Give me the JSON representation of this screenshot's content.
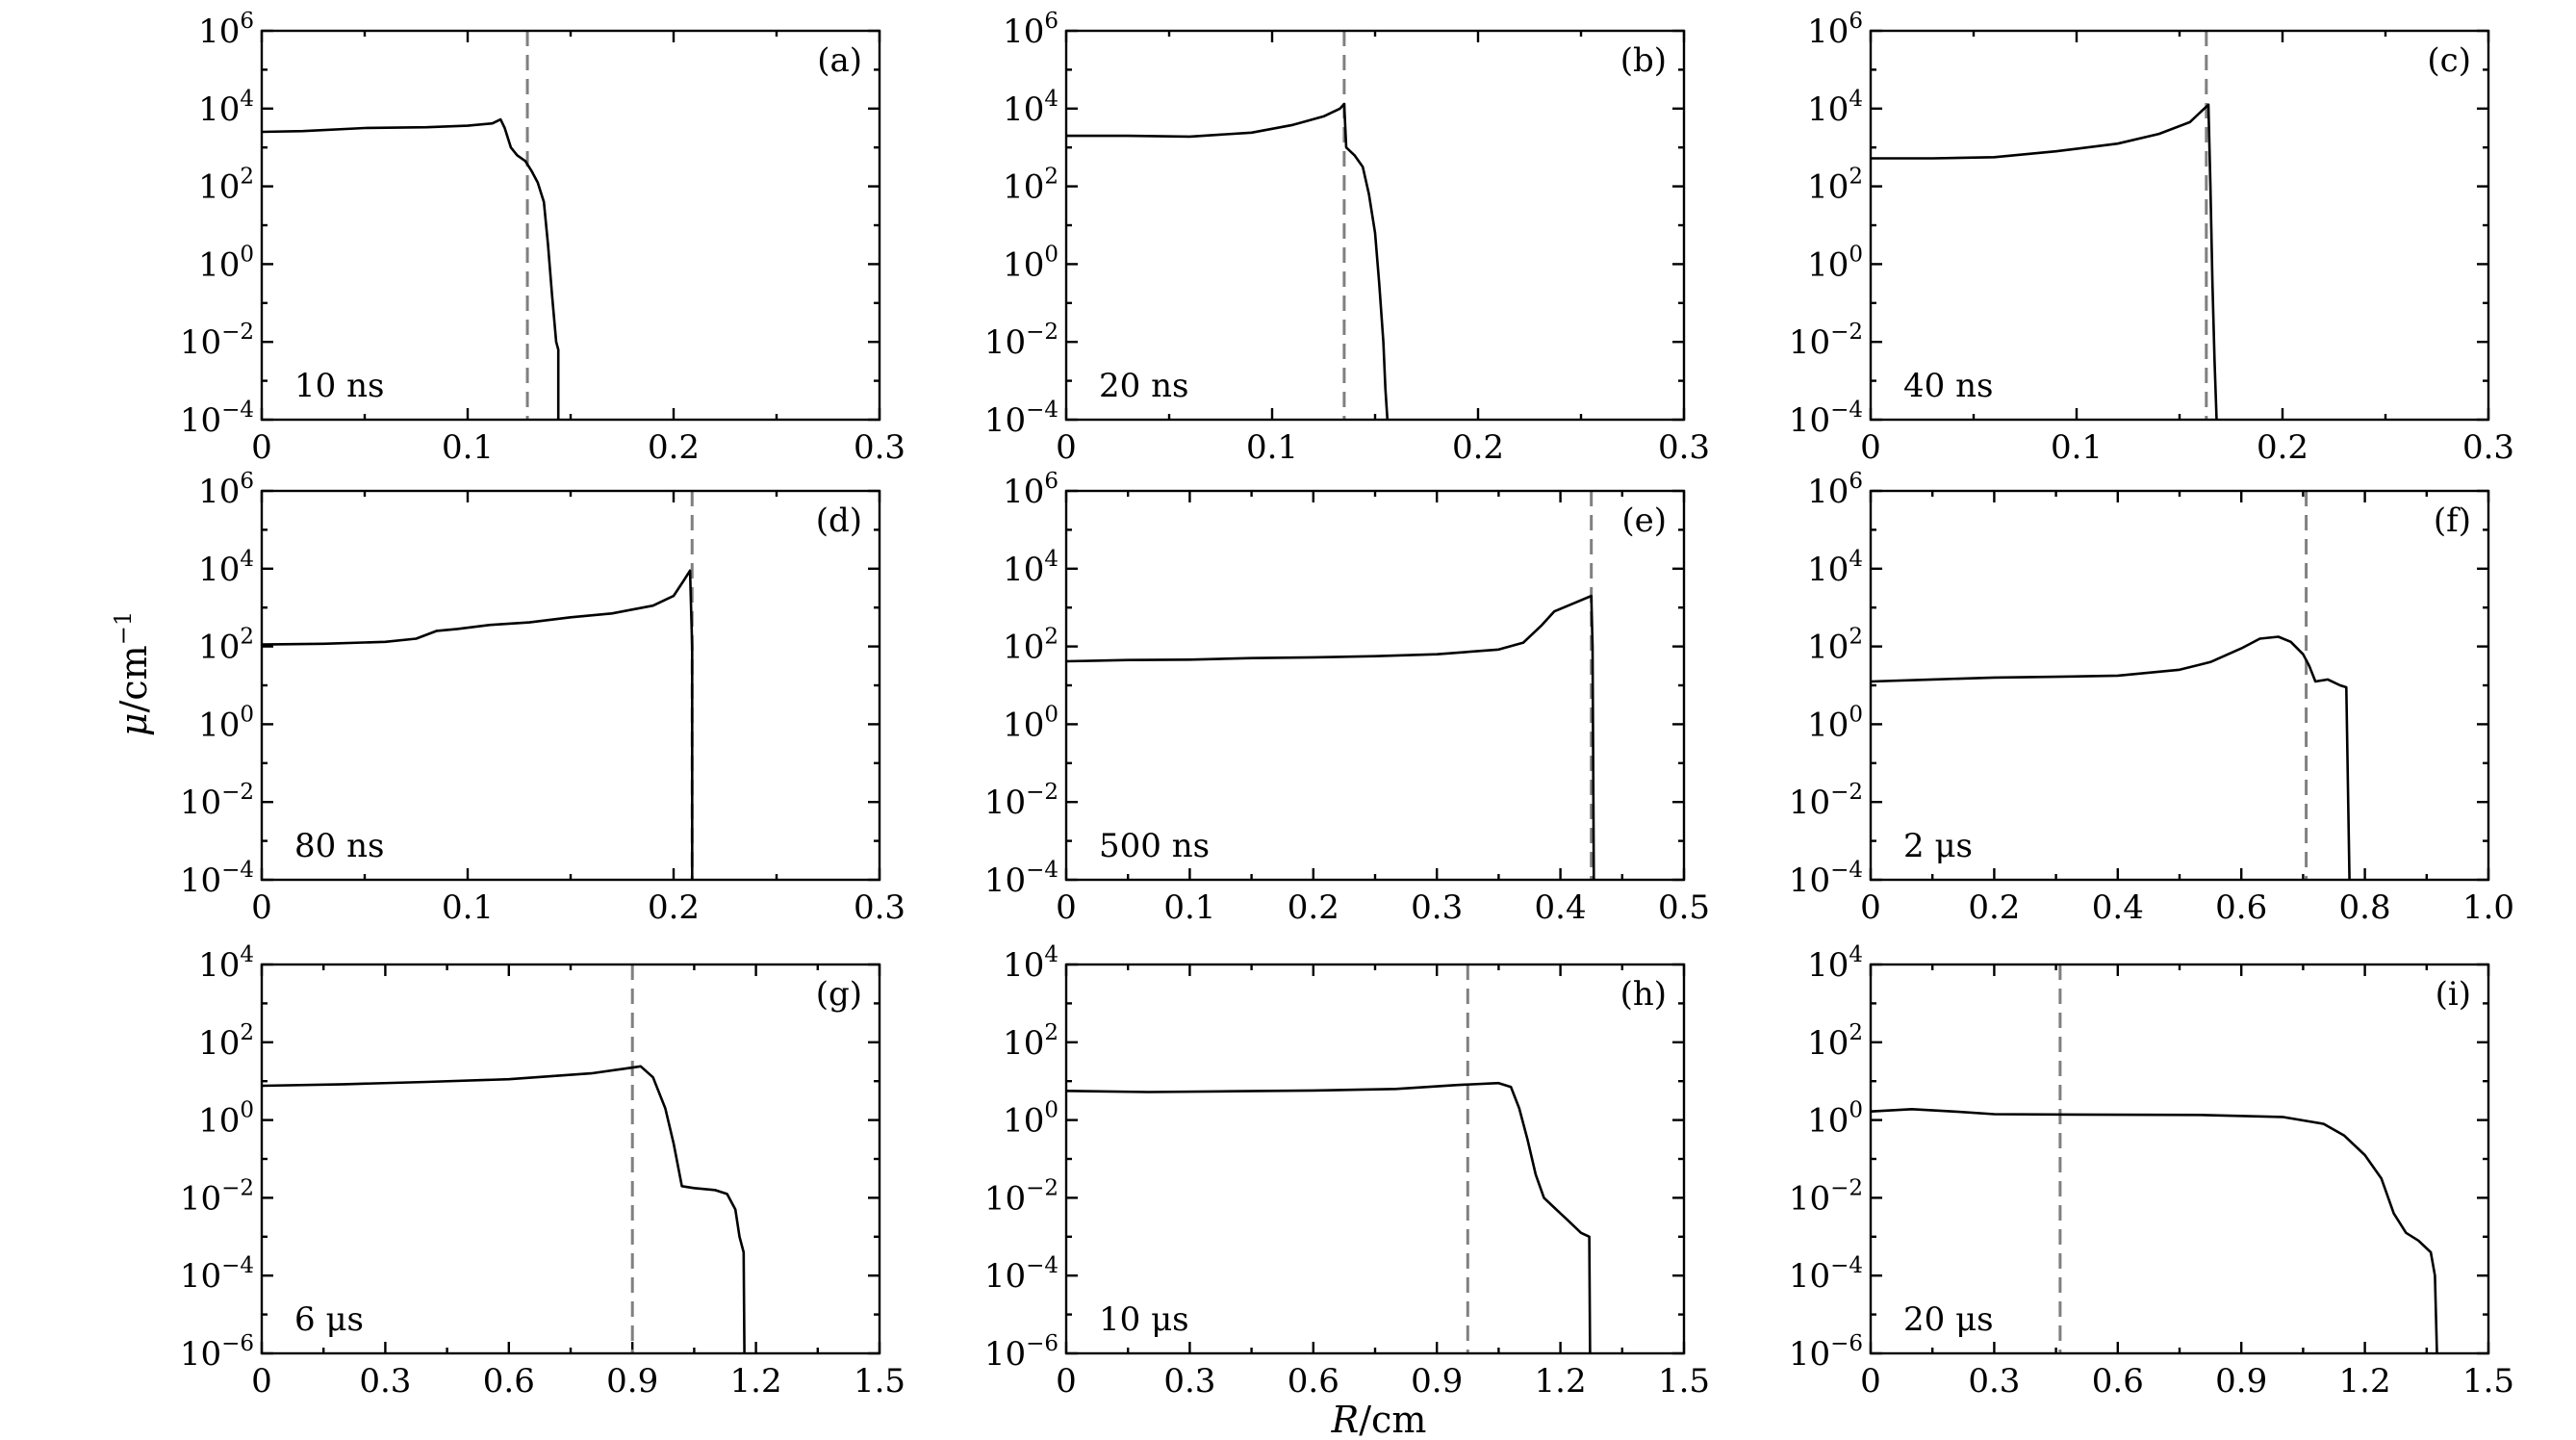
{
  "x_axis_label": {
    "var": "R",
    "unit": "/cm"
  },
  "y_axis_label": {
    "var": "μ",
    "unit": "/cm",
    "exp": "−1"
  },
  "chart_data": [
    {
      "panel": "(a)",
      "time": "10 ns",
      "type": "line",
      "y_scale": "log",
      "xlim": [
        0,
        0.3
      ],
      "xticks": [
        "0",
        "0.1",
        "0.2",
        "0.3"
      ],
      "ylim_exp": [
        -4,
        6
      ],
      "yticks_exp": [
        -4,
        -2,
        0,
        2,
        4,
        6
      ],
      "ref_x": 0.129,
      "points": [
        [
          0,
          3.4
        ],
        [
          0.02,
          3.42
        ],
        [
          0.05,
          3.5
        ],
        [
          0.08,
          3.52
        ],
        [
          0.1,
          3.56
        ],
        [
          0.112,
          3.62
        ],
        [
          0.116,
          3.72
        ],
        [
          0.118,
          3.5
        ],
        [
          0.121,
          3.0
        ],
        [
          0.124,
          2.8
        ],
        [
          0.128,
          2.65
        ],
        [
          0.131,
          2.4
        ],
        [
          0.134,
          2.1
        ],
        [
          0.137,
          1.6
        ],
        [
          0.139,
          0.5
        ],
        [
          0.141,
          -0.8
        ],
        [
          0.143,
          -2.0
        ],
        [
          0.144,
          -2.2
        ],
        [
          0.144,
          -4
        ]
      ]
    },
    {
      "panel": "(b)",
      "time": "20 ns",
      "type": "line",
      "y_scale": "log",
      "xlim": [
        0,
        0.3
      ],
      "xticks": [
        "0",
        "0.1",
        "0.2",
        "0.3"
      ],
      "ylim_exp": [
        -4,
        6
      ],
      "yticks_exp": [
        -4,
        -2,
        0,
        2,
        4,
        6
      ],
      "ref_x": 0.135,
      "points": [
        [
          0,
          3.3
        ],
        [
          0.03,
          3.3
        ],
        [
          0.06,
          3.28
        ],
        [
          0.09,
          3.38
        ],
        [
          0.11,
          3.58
        ],
        [
          0.125,
          3.8
        ],
        [
          0.133,
          4.0
        ],
        [
          0.135,
          4.12
        ],
        [
          0.136,
          3.0
        ],
        [
          0.14,
          2.8
        ],
        [
          0.144,
          2.5
        ],
        [
          0.147,
          1.8
        ],
        [
          0.15,
          0.8
        ],
        [
          0.152,
          -0.5
        ],
        [
          0.154,
          -2.0
        ],
        [
          0.155,
          -3.2
        ],
        [
          0.156,
          -4
        ]
      ]
    },
    {
      "panel": "(c)",
      "time": "40 ns",
      "type": "line",
      "y_scale": "log",
      "xlim": [
        0,
        0.3
      ],
      "xticks": [
        "0",
        "0.1",
        "0.2",
        "0.3"
      ],
      "ylim_exp": [
        -4,
        6
      ],
      "yticks_exp": [
        -4,
        -2,
        0,
        2,
        4,
        6
      ],
      "ref_x": 0.163,
      "points": [
        [
          0,
          2.72
        ],
        [
          0.03,
          2.72
        ],
        [
          0.06,
          2.75
        ],
        [
          0.09,
          2.9
        ],
        [
          0.12,
          3.1
        ],
        [
          0.14,
          3.35
        ],
        [
          0.155,
          3.65
        ],
        [
          0.162,
          4.0
        ],
        [
          0.164,
          4.1
        ],
        [
          0.165,
          2.0
        ],
        [
          0.166,
          -0.5
        ],
        [
          0.167,
          -2.5
        ],
        [
          0.168,
          -4
        ]
      ]
    },
    {
      "panel": "(d)",
      "time": "80 ns",
      "type": "line",
      "y_scale": "log",
      "xlim": [
        0,
        0.3
      ],
      "xticks": [
        "0",
        "0.1",
        "0.2",
        "0.3"
      ],
      "ylim_exp": [
        -4,
        6
      ],
      "yticks_exp": [
        -4,
        -2,
        0,
        2,
        4,
        6
      ],
      "ref_x": 0.209,
      "points": [
        [
          0,
          2.05
        ],
        [
          0.03,
          2.07
        ],
        [
          0.06,
          2.12
        ],
        [
          0.075,
          2.2
        ],
        [
          0.085,
          2.4
        ],
        [
          0.095,
          2.45
        ],
        [
          0.11,
          2.55
        ],
        [
          0.13,
          2.62
        ],
        [
          0.15,
          2.75
        ],
        [
          0.17,
          2.85
        ],
        [
          0.19,
          3.05
        ],
        [
          0.2,
          3.3
        ],
        [
          0.205,
          3.7
        ],
        [
          0.208,
          3.95
        ],
        [
          0.209,
          2.0
        ],
        [
          0.209,
          -4
        ]
      ]
    },
    {
      "panel": "(e)",
      "time": "500 ns",
      "type": "line",
      "y_scale": "log",
      "xlim": [
        0,
        0.5
      ],
      "xticks": [
        "0",
        "0.1",
        "0.2",
        "0.3",
        "0.4",
        "0.5"
      ],
      "ylim_exp": [
        -4,
        6
      ],
      "yticks_exp": [
        -4,
        -2,
        0,
        2,
        4,
        6
      ],
      "ref_x": 0.425,
      "points": [
        [
          0,
          1.62
        ],
        [
          0.05,
          1.65
        ],
        [
          0.1,
          1.66
        ],
        [
          0.15,
          1.7
        ],
        [
          0.2,
          1.72
        ],
        [
          0.25,
          1.75
        ],
        [
          0.3,
          1.8
        ],
        [
          0.35,
          1.92
        ],
        [
          0.37,
          2.1
        ],
        [
          0.385,
          2.55
        ],
        [
          0.395,
          2.9
        ],
        [
          0.41,
          3.1
        ],
        [
          0.425,
          3.3
        ],
        [
          0.426,
          2.0
        ],
        [
          0.427,
          -4
        ]
      ]
    },
    {
      "panel": "(f)",
      "time": "2 μs",
      "type": "line",
      "y_scale": "log",
      "xlim": [
        0,
        1.0
      ],
      "xticks": [
        "0",
        "0.2",
        "0.4",
        "0.6",
        "0.8",
        "1.0"
      ],
      "ylim_exp": [
        -4,
        6
      ],
      "yticks_exp": [
        -4,
        -2,
        0,
        2,
        4,
        6
      ],
      "ref_x": 0.705,
      "points": [
        [
          0,
          1.1
        ],
        [
          0.1,
          1.15
        ],
        [
          0.2,
          1.2
        ],
        [
          0.3,
          1.22
        ],
        [
          0.4,
          1.25
        ],
        [
          0.5,
          1.4
        ],
        [
          0.55,
          1.6
        ],
        [
          0.6,
          1.95
        ],
        [
          0.63,
          2.2
        ],
        [
          0.66,
          2.25
        ],
        [
          0.68,
          2.12
        ],
        [
          0.7,
          1.8
        ],
        [
          0.71,
          1.5
        ],
        [
          0.72,
          1.1
        ],
        [
          0.74,
          1.15
        ],
        [
          0.76,
          1.0
        ],
        [
          0.77,
          0.95
        ],
        [
          0.775,
          -4
        ]
      ]
    },
    {
      "panel": "(g)",
      "time": "6 μs",
      "type": "line",
      "y_scale": "log",
      "xlim": [
        0,
        1.5
      ],
      "xticks": [
        "0",
        "0.3",
        "0.6",
        "0.9",
        "1.2",
        "1.5"
      ],
      "ylim_exp": [
        -6,
        4
      ],
      "yticks_exp": [
        -6,
        -4,
        -2,
        0,
        2,
        4
      ],
      "ref_x": 0.9,
      "points": [
        [
          0,
          0.88
        ],
        [
          0.2,
          0.92
        ],
        [
          0.4,
          0.98
        ],
        [
          0.6,
          1.05
        ],
        [
          0.8,
          1.2
        ],
        [
          0.88,
          1.32
        ],
        [
          0.92,
          1.38
        ],
        [
          0.95,
          1.1
        ],
        [
          0.98,
          0.3
        ],
        [
          1.0,
          -0.6
        ],
        [
          1.02,
          -1.7
        ],
        [
          1.05,
          -1.75
        ],
        [
          1.1,
          -1.8
        ],
        [
          1.13,
          -1.9
        ],
        [
          1.15,
          -2.3
        ],
        [
          1.16,
          -3.0
        ],
        [
          1.17,
          -3.4
        ],
        [
          1.172,
          -6
        ]
      ]
    },
    {
      "panel": "(h)",
      "time": "10 μs",
      "type": "line",
      "y_scale": "log",
      "xlim": [
        0,
        1.5
      ],
      "xticks": [
        "0",
        "0.3",
        "0.6",
        "0.9",
        "1.2",
        "1.5"
      ],
      "ylim_exp": [
        -6,
        4
      ],
      "yticks_exp": [
        -6,
        -4,
        -2,
        0,
        2,
        4
      ],
      "ref_x": 0.975,
      "points": [
        [
          0,
          0.75
        ],
        [
          0.2,
          0.72
        ],
        [
          0.4,
          0.74
        ],
        [
          0.6,
          0.76
        ],
        [
          0.8,
          0.8
        ],
        [
          0.95,
          0.9
        ],
        [
          1.05,
          0.95
        ],
        [
          1.08,
          0.85
        ],
        [
          1.1,
          0.3
        ],
        [
          1.12,
          -0.5
        ],
        [
          1.14,
          -1.4
        ],
        [
          1.16,
          -2.0
        ],
        [
          1.18,
          -2.2
        ],
        [
          1.2,
          -2.4
        ],
        [
          1.22,
          -2.6
        ],
        [
          1.25,
          -2.9
        ],
        [
          1.27,
          -3.0
        ],
        [
          1.272,
          -6
        ]
      ]
    },
    {
      "panel": "(i)",
      "time": "20 μs",
      "type": "line",
      "y_scale": "log",
      "xlim": [
        0,
        1.5
      ],
      "xticks": [
        "0",
        "0.3",
        "0.6",
        "0.9",
        "1.2",
        "1.5"
      ],
      "ylim_exp": [
        -6,
        4
      ],
      "yticks_exp": [
        -6,
        -4,
        -2,
        0,
        2,
        4
      ],
      "ref_x": 0.46,
      "points": [
        [
          0,
          0.22
        ],
        [
          0.1,
          0.28
        ],
        [
          0.2,
          0.22
        ],
        [
          0.3,
          0.15
        ],
        [
          0.5,
          0.14
        ],
        [
          0.8,
          0.13
        ],
        [
          1.0,
          0.08
        ],
        [
          1.1,
          -0.1
        ],
        [
          1.15,
          -0.4
        ],
        [
          1.2,
          -0.9
        ],
        [
          1.24,
          -1.5
        ],
        [
          1.27,
          -2.4
        ],
        [
          1.3,
          -2.9
        ],
        [
          1.33,
          -3.1
        ],
        [
          1.36,
          -3.4
        ],
        [
          1.37,
          -4.0
        ],
        [
          1.375,
          -6
        ]
      ]
    }
  ]
}
